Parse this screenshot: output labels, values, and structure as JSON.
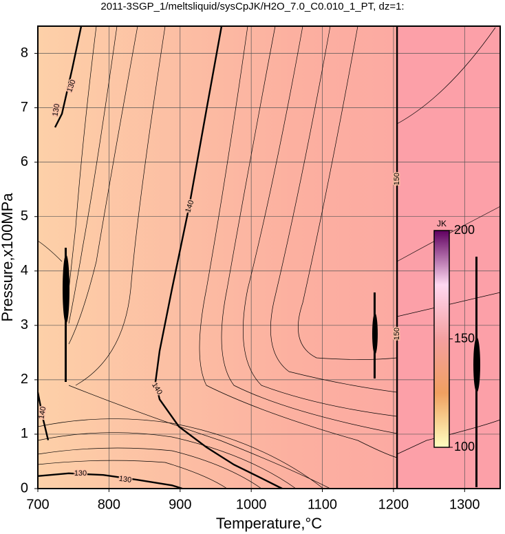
{
  "chart_data": {
    "type": "contour",
    "title": "2011-3SGP_1/meltsliquid/sysCpJK/H2O_7.0_C0.010_1_PT, dz=1:",
    "x_label": "Temperature,°C",
    "y_label": "Pressure,x100MPa",
    "xlim": [
      700,
      1350
    ],
    "ylim": [
      0,
      8.5
    ],
    "xticks": [
      700,
      800,
      900,
      1000,
      1100,
      1200,
      1300
    ],
    "yticks": [
      0,
      1,
      2,
      3,
      4,
      5,
      6,
      7,
      8
    ],
    "grid": true,
    "contours": [
      {
        "level": 140,
        "x": [
          958.3,
          937,
          912.8,
          888.6,
          871.2,
          865.4,
          871.2,
          898.3,
          937,
          975.7,
          1014.4,
          1043.4
        ],
        "y": [
          8.5,
          6.96,
          5.19,
          3.67,
          2.53,
          1.96,
          1.64,
          1.14,
          0.76,
          0.44,
          0.19,
          0
        ]
      },
      {
        "level": 150,
        "x": [
          1205,
          1205
        ],
        "y": [
          0,
          8.5
        ]
      },
      {
        "level": 130,
        "x": [
          700,
          743.5,
          791.9,
          840.3,
          888.6,
          903
        ],
        "y": [
          0.23,
          0.28,
          0.25,
          0.16,
          0.06,
          0
        ]
      },
      {
        "level": 130,
        "x": [
          761,
          748.4,
          733.9,
          724.2
        ],
        "y": [
          8.5,
          7.72,
          6.89,
          6.64
        ]
      },
      {
        "level": 140,
        "x": [
          700,
          707,
          714.5
        ],
        "y": [
          1.77,
          1.3,
          0.89
        ]
      }
    ],
    "colorbar": {
      "label": "JK",
      "lim": [
        100,
        200
      ],
      "ticks": [
        100,
        150,
        200
      ],
      "colors": [
        "#ffffc0",
        "#f0a060",
        "#f4a0a0",
        "#ffd8f0",
        "#600060"
      ]
    }
  }
}
